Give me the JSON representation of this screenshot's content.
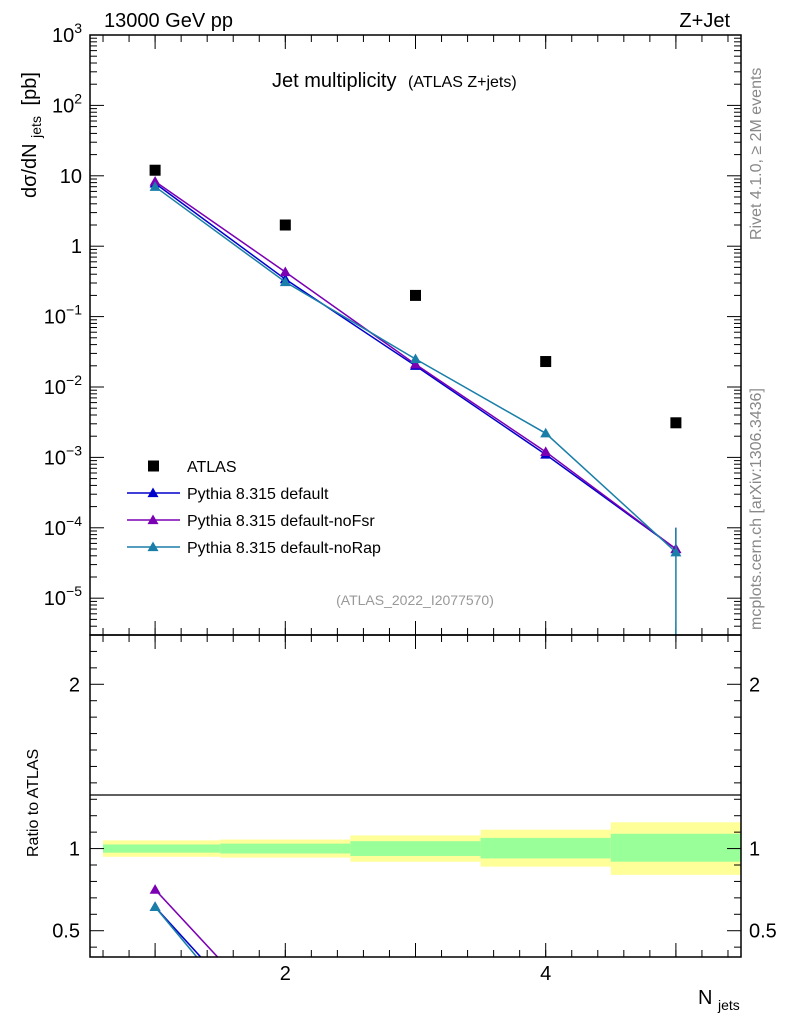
{
  "header": {
    "energy": "13000 GeV pp",
    "process": "Z+Jet"
  },
  "side_labels": {
    "rivet": "Rivet 4.1.0, ≥ 2M events",
    "mcplots": "mcplots.cern.ch [arXiv:1306.3436]"
  },
  "chart_data": [
    {
      "type": "scatter",
      "title": "Jet multiplicity",
      "subtitle": "(ATLAS Z+jets)",
      "watermark": "(ATLAS_2022_I2077570)",
      "ylabel_main": "dσ/dN",
      "ylabel_sub": "jets",
      "ylabel_unit": "[pb]",
      "yscale": "log",
      "ylim": [
        3e-06,
        1000
      ],
      "xlim": [
        0.5,
        5.5
      ],
      "legend_position": "bottom-left",
      "y_ticks": [
        {
          "v": 1e-05,
          "base": "10",
          "exp": "−5"
        },
        {
          "v": 0.0001,
          "base": "10",
          "exp": "−4"
        },
        {
          "v": 0.001,
          "base": "10",
          "exp": "−3"
        },
        {
          "v": 0.01,
          "base": "10",
          "exp": "−2"
        },
        {
          "v": 0.1,
          "base": "10",
          "exp": "−1"
        },
        {
          "v": 1,
          "base": "1",
          "exp": ""
        },
        {
          "v": 10,
          "base": "10",
          "exp": ""
        },
        {
          "v": 100,
          "base": "10",
          "exp": "2"
        },
        {
          "v": 1000,
          "base": "10",
          "exp": "3"
        }
      ],
      "series": [
        {
          "name": "ATLAS",
          "marker": "square",
          "color": "#000000",
          "x": [
            1,
            2,
            3,
            4,
            5
          ],
          "y": [
            12,
            2.0,
            0.2,
            0.023,
            0.0031
          ]
        },
        {
          "name": "Pythia 8.315 default",
          "marker": "triangle",
          "color": "#0000cc",
          "x": [
            1,
            2,
            3,
            4,
            5
          ],
          "y": [
            7.8,
            0.34,
            0.02,
            0.0011,
            5e-05
          ]
        },
        {
          "name": "Pythia 8.315 default-noFsr",
          "marker": "triangle",
          "color": "#7b00b4",
          "x": [
            1,
            2,
            3,
            4,
            5
          ],
          "y": [
            8.3,
            0.43,
            0.021,
            0.0012,
            5e-05
          ]
        },
        {
          "name": "Pythia 8.315 default-noRap",
          "marker": "triangle",
          "color": "#1a7fa8",
          "x": [
            1,
            2,
            3,
            4,
            5
          ],
          "y": [
            7.0,
            0.31,
            0.025,
            0.0022,
            4.5e-05
          ]
        }
      ]
    },
    {
      "type": "line",
      "ylabel": "Ratio to ATLAS",
      "xlabel_main": "N",
      "xlabel_sub": "jets",
      "ylim": [
        0.34,
        2.3
      ],
      "xlim": [
        0.5,
        5.5
      ],
      "y_tick_labels": [
        {
          "v": 0.5,
          "label": "0.5"
        },
        {
          "v": 1,
          "label": "1"
        },
        {
          "v": 2,
          "label": "2"
        }
      ],
      "x_tick_labels": [
        {
          "v": 2,
          "label": "2"
        },
        {
          "v": 4,
          "label": "4"
        }
      ],
      "bands": [
        {
          "x0": 0.6,
          "x1": 1.5,
          "inner": [
            0.975,
            1.025
          ],
          "outer": [
            0.95,
            1.05
          ]
        },
        {
          "x0": 1.5,
          "x1": 2.5,
          "inner": [
            0.97,
            1.03
          ],
          "outer": [
            0.945,
            1.055
          ]
        },
        {
          "x0": 2.5,
          "x1": 3.5,
          "inner": [
            0.955,
            1.045
          ],
          "outer": [
            0.92,
            1.08
          ]
        },
        {
          "x0": 3.5,
          "x1": 4.5,
          "inner": [
            0.94,
            1.065
          ],
          "outer": [
            0.89,
            1.115
          ]
        },
        {
          "x0": 4.5,
          "x1": 5.5,
          "inner": [
            0.92,
            1.09
          ],
          "outer": [
            0.84,
            1.16
          ]
        }
      ],
      "series": [
        {
          "name": "Pythia 8.315 default",
          "color": "#0000cc",
          "x": [
            1,
            1.35
          ],
          "y": [
            0.645,
            0.34
          ]
        },
        {
          "name": "Pythia 8.315 default-noFsr",
          "color": "#7b00b4",
          "x": [
            1,
            1.48
          ],
          "y": [
            0.75,
            0.34
          ]
        },
        {
          "name": "Pythia 8.315 default-noRap",
          "color": "#1a7fa8",
          "x": [
            1,
            1.32
          ],
          "y": [
            0.645,
            0.34
          ]
        }
      ]
    }
  ]
}
